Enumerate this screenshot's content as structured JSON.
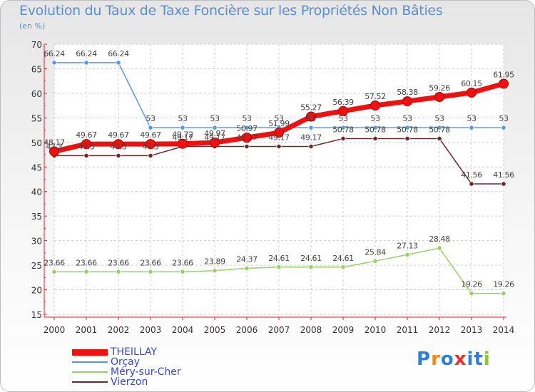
{
  "chart_data": {
    "type": "line",
    "title": "Evolution du Taux de Taxe Foncière sur les Propriétés Non Bâties",
    "unit_label": "(en %)",
    "x": [
      "2000",
      "2001",
      "2002",
      "2003",
      "2004",
      "2005",
      "2006",
      "2007",
      "2008",
      "2009",
      "2010",
      "2011",
      "2012",
      "2013",
      "2014"
    ],
    "ylim": [
      15,
      70
    ],
    "yticks": [
      15,
      20,
      25,
      30,
      35,
      40,
      45,
      50,
      55,
      60,
      65,
      70
    ],
    "grid": true,
    "legend_position": "bottom-left",
    "series": [
      {
        "name": "THEILLAY",
        "color": "#ee1111",
        "values": [
          48.17,
          49.67,
          49.67,
          49.67,
          49.72,
          49.97,
          50.97,
          51.99,
          55.27,
          56.39,
          57.52,
          58.38,
          59.26,
          60.15,
          61.95
        ],
        "labels": [
          "48.17",
          "49.67",
          "49.67",
          "49.67",
          "49.72",
          "49.97",
          "50.97",
          "51.99",
          "55.27",
          "56.39",
          "57.52",
          "58.38",
          "59.26",
          "60.15",
          "61.95"
        ]
      },
      {
        "name": "Orçay",
        "color": "#5b9bd5",
        "values": [
          66.24,
          66.24,
          66.24,
          53,
          53,
          53,
          53,
          53,
          53,
          53,
          53,
          53,
          53,
          53,
          53
        ],
        "labels": [
          "66.24",
          "66.24",
          "66.24",
          "53",
          "53",
          "53",
          "53",
          "53",
          "53",
          "53",
          "53",
          "53",
          "53",
          "53",
          "53"
        ]
      },
      {
        "name": "Méry-sur-Cher",
        "color": "#99d066",
        "values": [
          23.66,
          23.66,
          23.66,
          23.66,
          23.66,
          23.89,
          24.37,
          24.61,
          24.61,
          24.61,
          25.84,
          27.13,
          28.48,
          19.26,
          19.26
        ],
        "labels": [
          "23.66",
          "23.66",
          "23.66",
          "23.66",
          "23.66",
          "23.89",
          "24.37",
          "24.61",
          "24.61",
          "24.61",
          "25.84",
          "27.13",
          "28.48",
          "19.26",
          "19.26"
        ]
      },
      {
        "name": "Vierzon",
        "color": "#6b2a2a",
        "values": [
          47.3,
          47.3,
          47.3,
          47.3,
          49.17,
          49.17,
          49.17,
          49.17,
          49.17,
          50.78,
          50.78,
          50.78,
          50.78,
          41.56,
          41.56
        ],
        "labels": [
          "47.3",
          "47.3",
          "47.3",
          "47.3",
          "49.17",
          "49.17",
          "49.17",
          "49.17",
          "49.17",
          "50.78",
          "50.78",
          "50.78",
          "50.78",
          "41.56",
          "41.56"
        ]
      }
    ]
  },
  "brand": {
    "text": "Proxiti",
    "letter_colors": [
      "#2e7fd6",
      "#f08a1a",
      "#2e7fd6",
      "#e83030",
      "#2e7fd6",
      "#2e7fd6",
      "#8cc43c"
    ]
  }
}
